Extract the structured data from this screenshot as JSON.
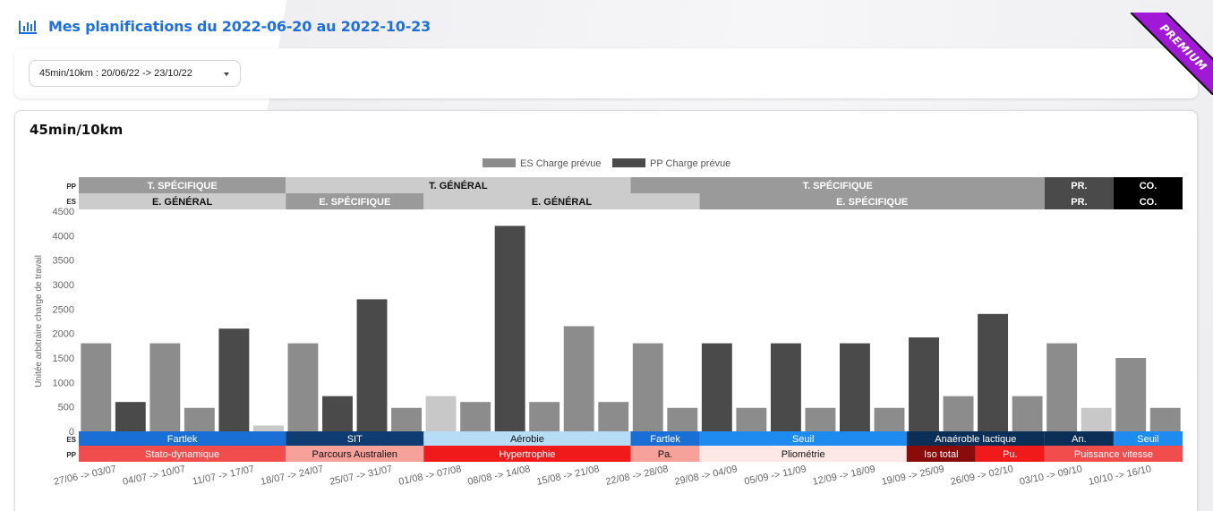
{
  "header": {
    "title": "Mes planifications du 2022-06-20 au 2022-10-23",
    "icon": "bar-chart-icon",
    "premium_label": "PREMIUM"
  },
  "filter": {
    "selected": "45min/10km : 20/06/22 -> 23/10/22"
  },
  "chart_card": {
    "title": "45min/10km"
  },
  "colors": {
    "accent": "#1f6fe0",
    "premium": "#a119d6",
    "es_bar": "#8c8c8c",
    "pp_bar": "#4a4a4a",
    "es_bar_light": "#c8c8c8"
  },
  "chart_data": {
    "type": "bar",
    "ylabel": "Unitée arbitraire charge de travail",
    "ylim": [
      0,
      4500
    ],
    "yticks": [
      0,
      500,
      1000,
      1500,
      2000,
      2500,
      3000,
      3500,
      4000,
      4500
    ],
    "legend": {
      "position": "top",
      "entries": [
        "ES Charge prévue",
        "PP Charge prévue"
      ]
    },
    "categories": [
      "27/06 -> 03/07",
      "04/07 -> 10/07",
      "11/07 -> 17/07",
      "18/07 -> 24/07",
      "25/07 -> 31/07",
      "01/08 -> 07/08",
      "08/08 -> 14/08",
      "15/08 -> 21/08",
      "22/08 -> 28/08",
      "29/08 -> 04/09",
      "05/09 -> 11/09",
      "12/09 -> 18/09",
      "19/09 -> 25/09",
      "26/09 -> 02/10",
      "03/10 -> 09/10",
      "10/10 -> 16/10"
    ],
    "bars": [
      {
        "value": 1800,
        "series": "ES"
      },
      {
        "value": 600,
        "series": "PP"
      },
      {
        "value": 1800,
        "series": "ES"
      },
      {
        "value": 480,
        "series": "ES"
      },
      {
        "value": 2100,
        "series": "PP"
      },
      {
        "value": 120,
        "series": "ES_light"
      },
      {
        "value": 1800,
        "series": "ES"
      },
      {
        "value": 720,
        "series": "PP"
      },
      {
        "value": 2700,
        "series": "PP"
      },
      {
        "value": 480,
        "series": "ES"
      },
      {
        "value": 720,
        "series": "ES_light"
      },
      {
        "value": 600,
        "series": "ES"
      },
      {
        "value": 4200,
        "series": "PP"
      },
      {
        "value": 600,
        "series": "ES"
      },
      {
        "value": 2150,
        "series": "ES"
      },
      {
        "value": 600,
        "series": "ES"
      },
      {
        "value": 1800,
        "series": "ES"
      },
      {
        "value": 480,
        "series": "ES"
      },
      {
        "value": 1800,
        "series": "PP"
      },
      {
        "value": 480,
        "series": "ES"
      },
      {
        "value": 1800,
        "series": "PP"
      },
      {
        "value": 480,
        "series": "ES"
      },
      {
        "value": 1800,
        "series": "PP"
      },
      {
        "value": 480,
        "series": "ES"
      },
      {
        "value": 1920,
        "series": "PP"
      },
      {
        "value": 720,
        "series": "ES"
      },
      {
        "value": 2400,
        "series": "PP"
      },
      {
        "value": 720,
        "series": "ES"
      },
      {
        "value": 1800,
        "series": "ES"
      },
      {
        "value": 480,
        "series": "ES_light"
      },
      {
        "value": 1500,
        "series": "ES"
      },
      {
        "value": 480,
        "series": "ES"
      }
    ],
    "top_bands": {
      "PP": [
        {
          "label": "T. SPÉCIFIQUE",
          "start": 0,
          "end": 6,
          "color": "#9a9a9a",
          "text": "#ffffff"
        },
        {
          "label": "T. GÉNÉRAL",
          "start": 6,
          "end": 16,
          "color": "#cccccc",
          "text": "#111111"
        },
        {
          "label": "T. SPÉCIFIQUE",
          "start": 16,
          "end": 28,
          "color": "#9a9a9a",
          "text": "#ffffff"
        },
        {
          "label": "PR.",
          "start": 28,
          "end": 30,
          "color": "#4a4a4a",
          "text": "#ffffff"
        },
        {
          "label": "CO.",
          "start": 30,
          "end": 32,
          "color": "#000000",
          "text": "#ffffff"
        }
      ],
      "ES": [
        {
          "label": "E. GÉNÉRAL",
          "start": 0,
          "end": 6,
          "color": "#cccccc",
          "text": "#111111"
        },
        {
          "label": "E. SPÉCIFIQUE",
          "start": 6,
          "end": 10,
          "color": "#9a9a9a",
          "text": "#ffffff"
        },
        {
          "label": "E. GÉNÉRAL",
          "start": 10,
          "end": 18,
          "color": "#cccccc",
          "text": "#111111"
        },
        {
          "label": "E. SPÉCIFIQUE",
          "start": 18,
          "end": 28,
          "color": "#9a9a9a",
          "text": "#ffffff"
        },
        {
          "label": "PR.",
          "start": 28,
          "end": 30,
          "color": "#4a4a4a",
          "text": "#ffffff"
        },
        {
          "label": "CO.",
          "start": 30,
          "end": 32,
          "color": "#000000",
          "text": "#ffffff"
        }
      ]
    },
    "bottom_bands": {
      "ES": [
        {
          "label": "Fartlek",
          "start": 0,
          "end": 6,
          "color": "#1a6fd6",
          "text": "#ffffff"
        },
        {
          "label": "SIT",
          "start": 6,
          "end": 10,
          "color": "#0f3d73",
          "text": "#ffffff"
        },
        {
          "label": "Aérobie",
          "start": 10,
          "end": 16,
          "color": "#b6dcf6",
          "text": "#111111"
        },
        {
          "label": "Fartlek",
          "start": 16,
          "end": 18,
          "color": "#1a6fd6",
          "text": "#ffffff"
        },
        {
          "label": "Seuil",
          "start": 18,
          "end": 24,
          "color": "#1d8bf0",
          "text": "#ffffff"
        },
        {
          "label": "Anaéroble lactique",
          "start": 24,
          "end": 28,
          "color": "#0c2f57",
          "text": "#ffffff"
        },
        {
          "label": "An.",
          "start": 28,
          "end": 30,
          "color": "#0c2f57",
          "text": "#ffffff"
        },
        {
          "label": "Seuil",
          "start": 30,
          "end": 32,
          "color": "#1d8bf0",
          "text": "#ffffff"
        }
      ],
      "PP": [
        {
          "label": "Stato-dynamique",
          "start": 0,
          "end": 6,
          "color": "#f24d4d",
          "text": "#ffffff"
        },
        {
          "label": "Parcours Australien",
          "start": 6,
          "end": 10,
          "color": "#f7a19b",
          "text": "#111111"
        },
        {
          "label": "Hypertrophie",
          "start": 10,
          "end": 16,
          "color": "#f01a1a",
          "text": "#ffffff"
        },
        {
          "label": "Pa.",
          "start": 16,
          "end": 18,
          "color": "#f7a19b",
          "text": "#111111"
        },
        {
          "label": "Pliométrie",
          "start": 18,
          "end": 24,
          "color": "#fde8e6",
          "text": "#111111"
        },
        {
          "label": "Iso total",
          "start": 24,
          "end": 26,
          "color": "#8b0a0a",
          "text": "#ffffff"
        },
        {
          "label": "Pu.",
          "start": 26,
          "end": 28,
          "color": "#f01a1a",
          "text": "#ffffff"
        },
        {
          "label": "Puissance vitesse",
          "start": 28,
          "end": 32,
          "color": "#f24d4d",
          "text": "#ffffff"
        }
      ]
    }
  }
}
